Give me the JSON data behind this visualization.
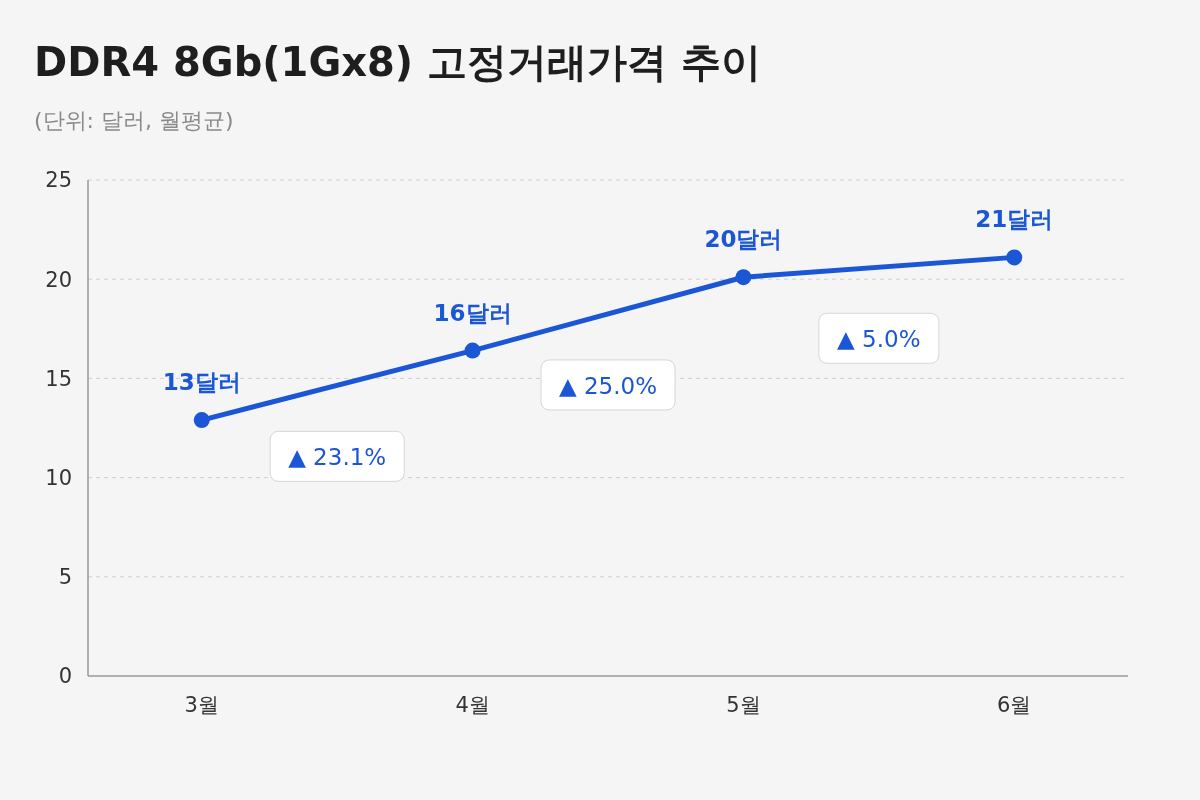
{
  "chart_data": {
    "type": "line",
    "title": "DDR4 8Gb(1Gx8) 고정거래가격 추이",
    "subtitle": "(단위: 달러, 월평균)",
    "categories": [
      "3월",
      "4월",
      "5월",
      "6월"
    ],
    "series": [
      {
        "color": "#1a56d6",
        "values": [
          12.9,
          16.4,
          20.1,
          21.1
        ],
        "value_labels": [
          "13달러",
          "16달러",
          "20달러",
          "21달러"
        ]
      }
    ],
    "ylim": [
      0,
      25
    ],
    "yticks": [
      0,
      5,
      10,
      15,
      20,
      25
    ],
    "grid": "y",
    "marker": "circle",
    "line_style": "solid",
    "annotations": [
      "▲ 23.1%",
      "▲ 25.0%",
      "▲ 5.0%"
    ]
  }
}
